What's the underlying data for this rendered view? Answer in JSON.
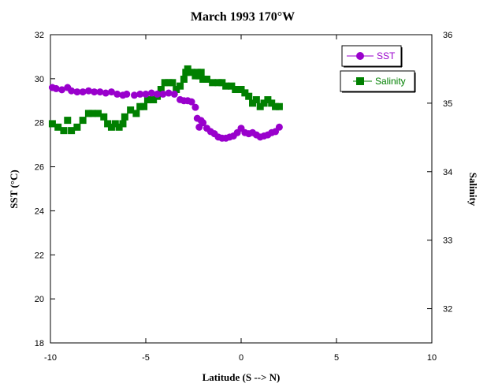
{
  "chart_data": {
    "type": "scatter",
    "title": "March 1993 170°W",
    "xlabel": "Latitude (S --> N)",
    "ylabel": "SST (°C)",
    "y2label": "Salinity",
    "xlim": [
      -10,
      10
    ],
    "ylim": [
      18,
      32
    ],
    "y2lim": [
      31.5,
      36
    ],
    "xticks": [
      -10,
      -5,
      0,
      5,
      10
    ],
    "yticks": [
      18,
      20,
      22,
      24,
      26,
      28,
      30,
      32
    ],
    "y2ticks": [
      32,
      33,
      34,
      35,
      36
    ],
    "grid": false,
    "legend_position": "top-right",
    "series": [
      {
        "name": "SST",
        "axis": "left",
        "color": "#9900cc",
        "marker": "circle",
        "x": [
          -9.9,
          -9.7,
          -9.4,
          -9.1,
          -8.9,
          -8.6,
          -8.3,
          -8.0,
          -7.7,
          -7.4,
          -7.1,
          -6.8,
          -6.5,
          -6.2,
          -6.0,
          -5.6,
          -5.3,
          -5.0,
          -4.7,
          -4.4,
          -4.1,
          -3.8,
          -3.5,
          -3.2,
          -3.0,
          -2.8,
          -2.6,
          -2.4,
          -2.3,
          -2.2,
          -2.1,
          -2.0,
          -1.8,
          -1.6,
          -1.4,
          -1.2,
          -1.0,
          -0.8,
          -0.6,
          -0.4,
          -0.2,
          0.0,
          0.2,
          0.4,
          0.6,
          0.8,
          1.0,
          1.2,
          1.4,
          1.6,
          1.8,
          2.0
        ],
        "y": [
          29.6,
          29.55,
          29.5,
          29.6,
          29.45,
          29.4,
          29.4,
          29.45,
          29.4,
          29.4,
          29.35,
          29.4,
          29.3,
          29.25,
          29.3,
          29.25,
          29.3,
          29.3,
          29.35,
          29.3,
          29.3,
          29.35,
          29.3,
          29.05,
          29.0,
          29.0,
          28.95,
          28.7,
          28.2,
          27.8,
          28.1,
          28.0,
          27.75,
          27.6,
          27.5,
          27.35,
          27.3,
          27.3,
          27.35,
          27.4,
          27.55,
          27.75,
          27.55,
          27.5,
          27.55,
          27.45,
          27.35,
          27.4,
          27.45,
          27.55,
          27.6,
          27.8
        ]
      },
      {
        "name": "Salinity",
        "axis": "right",
        "color": "#008000",
        "marker": "square",
        "x": [
          -9.9,
          -9.6,
          -9.3,
          -9.1,
          -8.9,
          -8.6,
          -8.3,
          -8.0,
          -7.8,
          -7.5,
          -7.2,
          -7.0,
          -6.8,
          -6.6,
          -6.4,
          -6.2,
          -6.1,
          -5.8,
          -5.5,
          -5.3,
          -5.1,
          -4.9,
          -4.6,
          -4.4,
          -4.2,
          -4.0,
          -3.8,
          -3.6,
          -3.4,
          -3.2,
          -3.0,
          -2.9,
          -2.8,
          -2.6,
          -2.4,
          -2.3,
          -2.2,
          -2.1,
          -2.0,
          -1.8,
          -1.5,
          -1.2,
          -1.0,
          -0.8,
          -0.5,
          -0.3,
          0.0,
          0.2,
          0.4,
          0.6,
          0.8,
          1.0,
          1.2,
          1.4,
          1.6,
          1.8,
          2.0
        ],
        "y": [
          34.7,
          34.65,
          34.6,
          34.75,
          34.6,
          34.65,
          34.75,
          34.85,
          34.85,
          34.85,
          34.8,
          34.7,
          34.65,
          34.7,
          34.65,
          34.7,
          34.8,
          34.9,
          34.85,
          34.95,
          34.95,
          35.05,
          35.05,
          35.1,
          35.2,
          35.3,
          35.3,
          35.3,
          35.2,
          35.25,
          35.35,
          35.45,
          35.5,
          35.45,
          35.4,
          35.45,
          35.4,
          35.45,
          35.35,
          35.35,
          35.3,
          35.3,
          35.3,
          35.25,
          35.25,
          35.2,
          35.2,
          35.15,
          35.1,
          35.0,
          35.05,
          34.95,
          35.0,
          35.05,
          35.0,
          34.95,
          34.95
        ]
      }
    ]
  }
}
